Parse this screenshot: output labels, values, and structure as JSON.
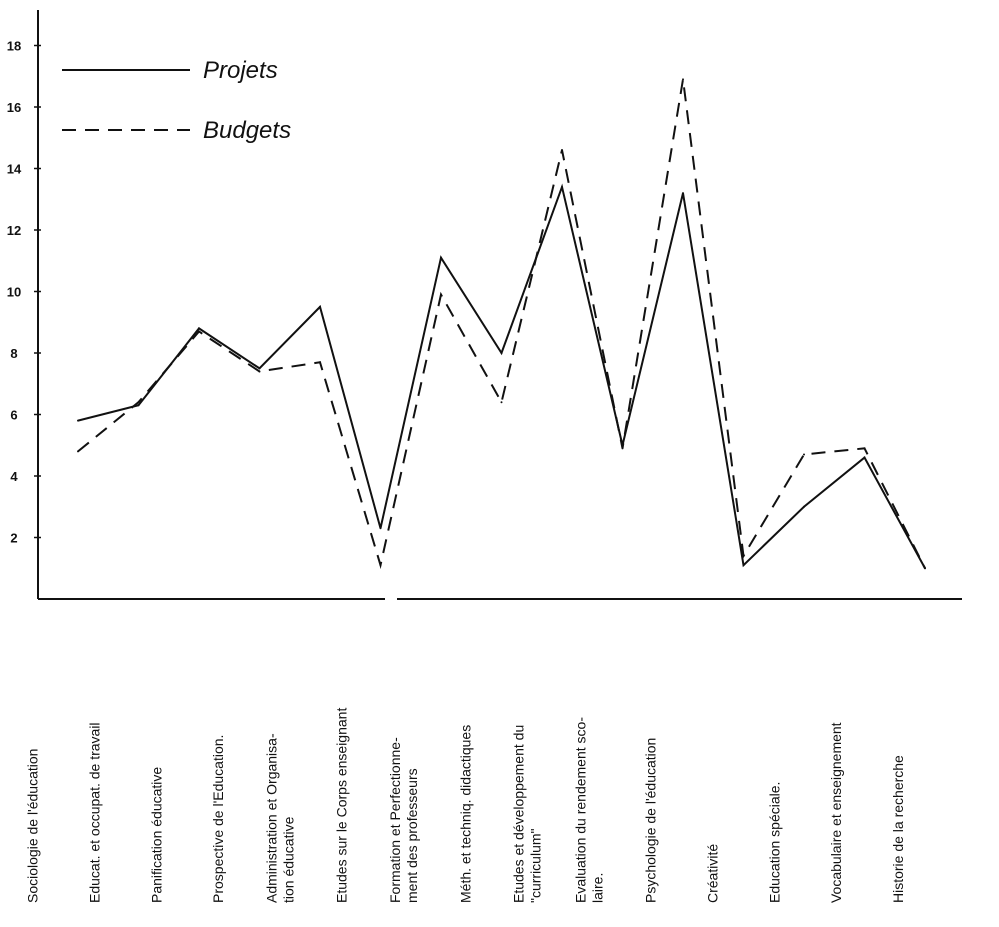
{
  "chart_data": {
    "type": "line",
    "title": "",
    "xlabel": "",
    "ylabel": "",
    "ylim": [
      0,
      18.8
    ],
    "yticks": [
      2,
      4,
      6,
      8,
      10,
      12,
      14,
      16,
      18
    ],
    "grid": false,
    "legend_position": "top-left",
    "categories": [
      [
        "Sociologie de l'éducation"
      ],
      [
        "Educat. et occupat. de travail"
      ],
      [
        "Panification éducative"
      ],
      [
        "Prospective de l'Education."
      ],
      [
        "Administration   et   Organisa-",
        "tion éducative"
      ],
      [
        "Etudes sur le Corps enseignant"
      ],
      [
        "Formation   et   Perfectionne-",
        "ment des professeurs"
      ],
      [
        "Méth. et techniq. didactiques"
      ],
      [
        "Etudes  et  développement  du",
        "\"curriculum\""
      ],
      [
        "Evaluation  du  rendement  sco-",
        "laire."
      ],
      [
        "Psychologie de l'éducation"
      ],
      [
        "Créativité"
      ],
      [
        "Education spéciale."
      ],
      [
        "Vocabulaire   et   enseignement"
      ],
      [
        "Historie de la recherche"
      ]
    ],
    "series": [
      {
        "name": "Projets",
        "style": "solid",
        "color": "#111111",
        "values": [
          5.8,
          6.3,
          8.8,
          7.5,
          9.5,
          2.3,
          11.1,
          8.0,
          13.4,
          5.0,
          13.2,
          1.1,
          3.0,
          4.6,
          1.0
        ]
      },
      {
        "name": "Budgets",
        "style": "dashed",
        "color": "#111111",
        "values": [
          4.8,
          6.4,
          8.7,
          7.4,
          7.7,
          1.1,
          9.9,
          6.4,
          14.6,
          4.9,
          16.9,
          1.4,
          4.7,
          4.9,
          1.0
        ]
      }
    ]
  }
}
